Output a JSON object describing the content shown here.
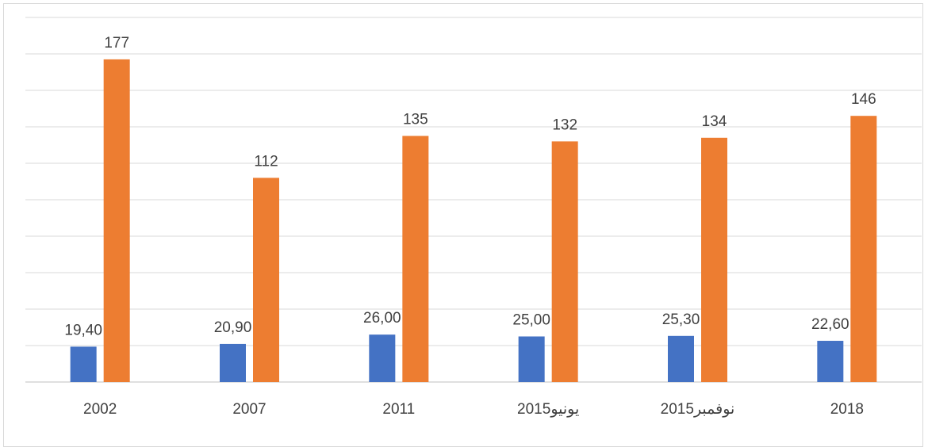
{
  "chart_data": {
    "type": "bar",
    "categories": [
      "2002",
      "2007",
      "2011",
      "2015يونيو",
      "2015نوفمبر",
      "2018"
    ],
    "series": [
      {
        "values": [
          19.4,
          20.9,
          26.0,
          25.0,
          25.3,
          22.6
        ],
        "value_labels": [
          "19,40",
          "20,90",
          "26,00",
          "25,00",
          "25,30",
          "22,60"
        ],
        "color": "#4472c4"
      },
      {
        "values": [
          177,
          112,
          135,
          132,
          134,
          146
        ],
        "value_labels": [
          "177",
          "112",
          "135",
          "132",
          "134",
          "146"
        ],
        "color": "#ed7d31"
      }
    ],
    "ylim": [
      0,
      200
    ],
    "grid": true,
    "gridline_color": "#d9d9d9",
    "axis_color": "#bfbfbf",
    "title": "",
    "xlabel": "",
    "ylabel": ""
  }
}
